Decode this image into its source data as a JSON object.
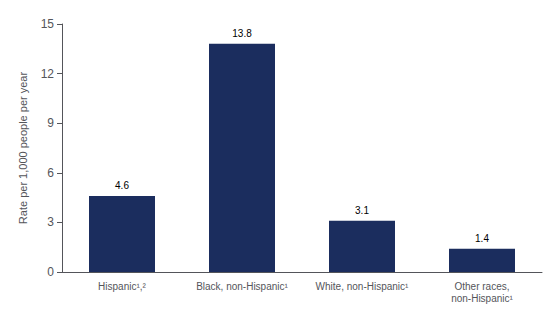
{
  "chart_data": {
    "type": "bar",
    "categories": [
      "Hispanic¹,²",
      "Black, non-Hispanic¹",
      "White, non-Hispanic¹",
      "Other races,\nnon-Hispanic¹"
    ],
    "values": [
      4.6,
      13.8,
      3.1,
      1.4
    ],
    "color": "#1b2d5e",
    "ylabel": "Rate per 1,000 people per year",
    "ylim": [
      0,
      15
    ],
    "yticks": [
      0,
      3,
      6,
      9,
      12,
      15
    ],
    "grid": false,
    "data_labels": true
  }
}
